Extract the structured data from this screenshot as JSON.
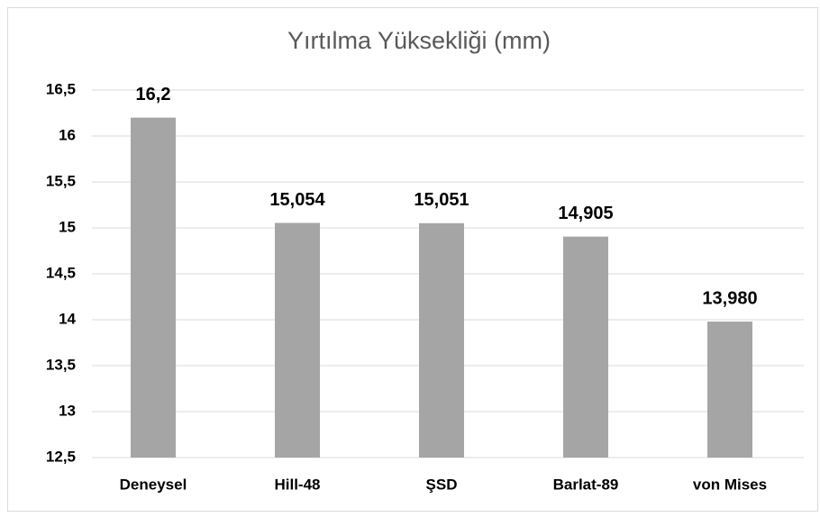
{
  "chart_data": {
    "type": "bar",
    "title": "Yırtılma Yüksekliği (mm)",
    "categories": [
      "Deneysel",
      "Hill-48",
      "ŞSD",
      "Barlat-89",
      "von Mises"
    ],
    "values": [
      16.2,
      15.054,
      15.051,
      14.905,
      13.98
    ],
    "value_labels": [
      "16,2",
      "15,054",
      "15,051",
      "14,905",
      "13,980"
    ],
    "color": "#a5a5a5",
    "ylim": [
      12.5,
      16.5
    ],
    "yticks": [
      {
        "value": 12.5,
        "label": "12,5"
      },
      13,
      {
        "value": 13.5,
        "label": "13,5"
      },
      14,
      {
        "value": 14.5,
        "label": "14,5"
      },
      15,
      {
        "value": 15.5,
        "label": "15,5"
      },
      16,
      {
        "value": 16.5,
        "label": "16,5"
      }
    ],
    "grid": true
  }
}
